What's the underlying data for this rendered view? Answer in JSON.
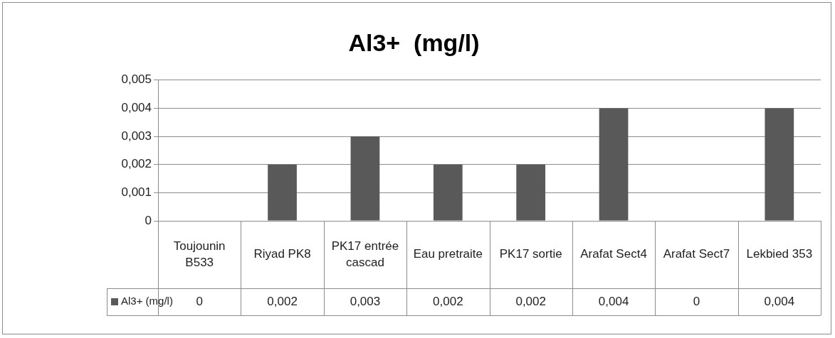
{
  "chart_data": {
    "type": "bar",
    "title": "Al3+  (mg/l)",
    "categories": [
      "Toujounin B533",
      "Riyad PK8",
      "PK17 entrée cascad",
      "Eau pretraite",
      "PK17 sortie",
      "Arafat Sect4",
      "Arafat Sect7",
      "Lekbied 353"
    ],
    "series": [
      {
        "name": "Al3+ (mg/l)",
        "color": "#595959",
        "values": [
          0,
          0.002,
          0.003,
          0.002,
          0.002,
          0.004,
          0,
          0.004
        ],
        "value_labels": [
          "0",
          "0,002",
          "0,003",
          "0,002",
          "0,002",
          "0,004",
          "0",
          "0,004"
        ]
      }
    ],
    "ylim": [
      0,
      0.005
    ],
    "yticks": [
      {
        "value": 0,
        "label": "0"
      },
      {
        "value": 0.001,
        "label": "0,001"
      },
      {
        "value": 0.002,
        "label": "0,002"
      },
      {
        "value": 0.003,
        "label": "0,003"
      },
      {
        "value": 0.004,
        "label": "0,004"
      },
      {
        "value": 0.005,
        "label": "0,005"
      }
    ],
    "grid": "y"
  }
}
